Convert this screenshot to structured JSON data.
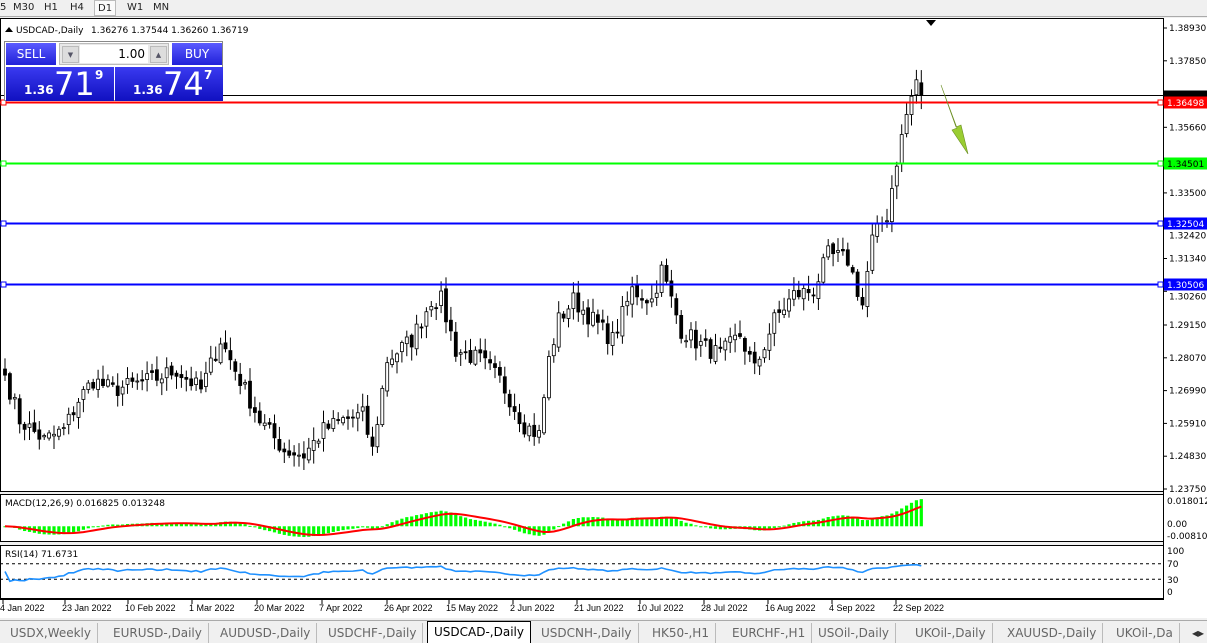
{
  "timeframes": [
    {
      "label": "5"
    },
    {
      "label": "M30"
    },
    {
      "label": "H1"
    },
    {
      "label": "H4"
    },
    {
      "label": "D1",
      "active": true
    },
    {
      "label": "W1"
    },
    {
      "label": "MN"
    }
  ],
  "chart_header": {
    "symbol": "USDCAD-,Daily",
    "ohlc": "1.36276 1.37544 1.36260 1.36719"
  },
  "trade_panel": {
    "sell_label": "SELL",
    "buy_label": "BUY",
    "lot": "1.00",
    "sell": {
      "prefix": "1.36",
      "big": "71",
      "sup": "9"
    },
    "buy": {
      "prefix": "1.36",
      "big": "74",
      "sup": "7"
    }
  },
  "chart_data": {
    "type": "candlestick",
    "ylim": [
      1.2375,
      1.3893
    ],
    "y_ticks": [
      "1.38930",
      "1.37850",
      "1.35660",
      "1.33500",
      "1.32420",
      "1.31340",
      "1.30260",
      "1.29150",
      "1.28070",
      "1.26990",
      "1.25910",
      "1.24830",
      "1.23750"
    ],
    "x_ticks": [
      "4 Jan 2022",
      "23 Jan 2022",
      "10 Feb 2022",
      "1 Mar 2022",
      "20 Mar 2022",
      "7 Apr 2022",
      "26 Apr 2022",
      "15 May 2022",
      "2 Jun 2022",
      "21 Jun 2022",
      "10 Jul 2022",
      "28 Jul 2022",
      "16 Aug 2022",
      "4 Sep 2022",
      "22 Sep 2022"
    ],
    "approx_close_path": [
      [
        0,
        1.275
      ],
      [
        3,
        1.2602
      ],
      [
        8,
        1.2536
      ],
      [
        12,
        1.2569
      ],
      [
        15,
        1.2668
      ],
      [
        18,
        1.2734
      ],
      [
        22,
        1.2701
      ],
      [
        26,
        1.2718
      ],
      [
        30,
        1.2734
      ],
      [
        35,
        1.2767
      ],
      [
        40,
        1.2701
      ],
      [
        44,
        1.2866
      ],
      [
        48,
        1.2734
      ],
      [
        52,
        1.2602
      ],
      [
        57,
        1.2503
      ],
      [
        61,
        1.2487
      ],
      [
        65,
        1.2569
      ],
      [
        69,
        1.2602
      ],
      [
        73,
        1.2619
      ],
      [
        75,
        1.2503
      ],
      [
        78,
        1.28
      ],
      [
        83,
        1.2866
      ],
      [
        87,
        1.2997
      ],
      [
        89,
        1.2997
      ],
      [
        92,
        1.2833
      ],
      [
        97,
        1.28
      ],
      [
        101,
        1.2734
      ],
      [
        106,
        1.2586
      ],
      [
        109,
        1.2553
      ],
      [
        111,
        1.28
      ],
      [
        113,
        1.2932
      ],
      [
        116,
        1.2997
      ],
      [
        120,
        1.2932
      ],
      [
        124,
        1.2866
      ],
      [
        128,
        1.303
      ],
      [
        132,
        1.2997
      ],
      [
        134,
        1.3096
      ],
      [
        138,
        1.2899
      ],
      [
        142,
        1.2849
      ],
      [
        146,
        1.2816
      ],
      [
        150,
        1.2882
      ],
      [
        153,
        1.2767
      ],
      [
        157,
        1.2932
      ],
      [
        161,
        1.3014
      ],
      [
        165,
        1.303
      ],
      [
        168,
        1.3146
      ],
      [
        172,
        1.313
      ],
      [
        175,
        1.2981
      ],
      [
        177,
        1.3195
      ],
      [
        180,
        1.3277
      ],
      [
        182,
        1.3458
      ],
      [
        184,
        1.3607
      ],
      [
        186,
        1.3722
      ],
      [
        187,
        1.36719
      ]
    ],
    "last_price": 1.36719,
    "levels": [
      {
        "price": "1.36498",
        "color": "#ff0000"
      },
      {
        "price": "1.34501",
        "color": "#00ff00"
      },
      {
        "price": "1.32504",
        "color": "#0000ff"
      },
      {
        "price": "1.30506",
        "color": "#0000ff"
      }
    ],
    "annotation": {
      "type": "arrow-down",
      "color": "#9acd32"
    },
    "macd": {
      "label": "MACD(12,26,9) 0.016825 0.013248",
      "ticks": [
        "0.018012",
        "0.00",
        "-0.008101"
      ],
      "hist_color": "#00ff00",
      "signal_color": "#ff0000"
    },
    "rsi": {
      "label": "RSI(14) 71.6731",
      "ticks": [
        "100",
        "70",
        "30",
        "0"
      ],
      "levels": [
        70,
        30
      ],
      "color": "#1e90ff"
    }
  },
  "tabs": [
    {
      "label": "USDX,Weekly"
    },
    {
      "label": "EURUSD-,Daily"
    },
    {
      "label": "AUDUSD-,Daily"
    },
    {
      "label": "USDCHF-,Daily"
    },
    {
      "label": "USDCAD-,Daily",
      "active": true
    },
    {
      "label": "USDCNH-,Daily"
    },
    {
      "label": "HK50-,H1"
    },
    {
      "label": "EURCHF-,H1"
    },
    {
      "label": "USOil-,Daily"
    },
    {
      "label": "UKOil-,Daily"
    },
    {
      "label": "XAUUSD-,Daily"
    },
    {
      "label": "UKOil-,Da"
    }
  ]
}
